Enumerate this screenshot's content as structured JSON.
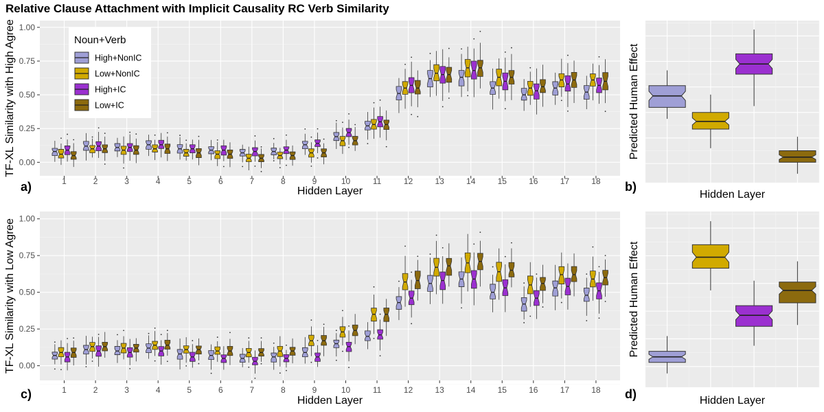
{
  "title": "Relative Clause Attachment with Implicit Causality RC Verb Similarity",
  "colors": {
    "panel_bg": "#ebebeb",
    "grid_major": "#ffffff",
    "High+NonIC": "#9f9fd6",
    "Low+NonIC": "#d1aa00",
    "High+IC": "#9b30d0",
    "Low+IC": "#8c6a0e"
  },
  "legend": {
    "title": "Noun+Verb",
    "items": [
      "High+NonIC",
      "Low+NonIC",
      "High+IC",
      "Low+IC"
    ]
  },
  "chart_data": [
    {
      "id": "a",
      "panel_label": "a)",
      "type": "boxplot",
      "xlabel": "Hidden Layer",
      "ylabel": "TF-XL Similarity with High Agree",
      "categories": [
        "1",
        "2",
        "3",
        "4",
        "5",
        "6",
        "7",
        "8",
        "9",
        "10",
        "11",
        "12",
        "13",
        "14",
        "15",
        "16",
        "17",
        "18"
      ],
      "yticks": [
        "0.00",
        "0.25",
        "0.50",
        "0.75",
        "1.00"
      ],
      "ylim": [
        -0.1,
        1.05
      ],
      "series": [
        {
          "name": "High+NonIC",
          "medians": [
            0.08,
            0.12,
            0.11,
            0.13,
            0.1,
            0.09,
            0.07,
            0.08,
            0.13,
            0.19,
            0.27,
            0.51,
            0.62,
            0.63,
            0.55,
            0.5,
            0.55,
            0.52
          ]
        },
        {
          "name": "Low+NonIC",
          "medians": [
            0.06,
            0.1,
            0.09,
            0.1,
            0.07,
            0.06,
            0.03,
            0.05,
            0.07,
            0.16,
            0.28,
            0.55,
            0.66,
            0.7,
            0.63,
            0.55,
            0.61,
            0.61
          ]
        },
        {
          "name": "High+IC",
          "medians": [
            0.09,
            0.12,
            0.11,
            0.13,
            0.1,
            0.09,
            0.08,
            0.09,
            0.14,
            0.22,
            0.3,
            0.57,
            0.65,
            0.68,
            0.6,
            0.53,
            0.58,
            0.57
          ]
        },
        {
          "name": "Low+IC",
          "medians": [
            0.05,
            0.1,
            0.09,
            0.1,
            0.07,
            0.06,
            0.03,
            0.05,
            0.07,
            0.16,
            0.28,
            0.55,
            0.65,
            0.7,
            0.63,
            0.56,
            0.61,
            0.6
          ]
        }
      ]
    },
    {
      "id": "b",
      "panel_label": "b)",
      "type": "boxplot",
      "xlabel": "Hidden Layer",
      "ylabel": "Predicted Human Effect",
      "categories": [
        "High+NonIC",
        "Low+NonIC",
        "High+IC",
        "Low+IC"
      ],
      "series": [
        {
          "name": "High+NonIC",
          "min": 0.35,
          "q1": 0.44,
          "median": 0.53,
          "q3": 0.61,
          "max": 0.73
        },
        {
          "name": "Low+NonIC",
          "min": 0.12,
          "q1": 0.27,
          "median": 0.33,
          "q3": 0.4,
          "max": 0.54
        },
        {
          "name": "High+IC",
          "min": 0.45,
          "q1": 0.7,
          "median": 0.78,
          "q3": 0.86,
          "max": 1.05
        },
        {
          "name": "Low+IC",
          "min": -0.08,
          "q1": 0.01,
          "median": 0.05,
          "q3": 0.1,
          "max": 0.21
        }
      ]
    },
    {
      "id": "c",
      "panel_label": "c)",
      "type": "boxplot",
      "xlabel": "Hidden Layer",
      "ylabel": "TF-XL Similarity with Low Agree",
      "categories": [
        "1",
        "2",
        "3",
        "4",
        "5",
        "6",
        "7",
        "8",
        "9",
        "10",
        "11",
        "12",
        "13",
        "14",
        "15",
        "16",
        "17",
        "18"
      ],
      "yticks": [
        "0.00",
        "0.25",
        "0.50",
        "0.75",
        "1.00"
      ],
      "ylim": [
        -0.1,
        1.05
      ],
      "series": [
        {
          "name": "High+NonIC",
          "medians": [
            0.07,
            0.11,
            0.1,
            0.12,
            0.08,
            0.07,
            0.05,
            0.06,
            0.09,
            0.15,
            0.2,
            0.43,
            0.56,
            0.59,
            0.5,
            0.42,
            0.53,
            0.48
          ]
        },
        {
          "name": "Low+NonIC",
          "medians": [
            0.09,
            0.13,
            0.12,
            0.14,
            0.11,
            0.1,
            0.09,
            0.1,
            0.17,
            0.23,
            0.35,
            0.57,
            0.67,
            0.7,
            0.64,
            0.55,
            0.62,
            0.59
          ]
        },
        {
          "name": "High+IC",
          "medians": [
            0.06,
            0.1,
            0.09,
            0.1,
            0.06,
            0.05,
            0.03,
            0.05,
            0.06,
            0.13,
            0.21,
            0.46,
            0.58,
            0.59,
            0.53,
            0.46,
            0.54,
            0.51
          ]
        },
        {
          "name": "Low+IC",
          "medians": [
            0.09,
            0.13,
            0.12,
            0.14,
            0.11,
            0.1,
            0.09,
            0.1,
            0.17,
            0.24,
            0.35,
            0.58,
            0.68,
            0.71,
            0.65,
            0.56,
            0.62,
            0.6
          ]
        }
      ]
    },
    {
      "id": "d",
      "panel_label": "d)",
      "type": "boxplot",
      "xlabel": "Hidden Layer",
      "ylabel": "Predicted Human Effect",
      "categories": [
        "High+NonIC",
        "Low+NonIC",
        "High+IC",
        "Low+IC"
      ],
      "series": [
        {
          "name": "High+NonIC",
          "min": -0.05,
          "q1": 0.03,
          "median": 0.07,
          "q3": 0.11,
          "max": 0.22
        },
        {
          "name": "Low+NonIC",
          "min": 0.55,
          "q1": 0.71,
          "median": 0.79,
          "q3": 0.88,
          "max": 1.05
        },
        {
          "name": "High+IC",
          "min": 0.15,
          "q1": 0.29,
          "median": 0.37,
          "q3": 0.44,
          "max": 0.62
        },
        {
          "name": "Low+IC",
          "min": 0.3,
          "q1": 0.46,
          "median": 0.55,
          "q3": 0.61,
          "max": 0.76
        }
      ]
    }
  ]
}
